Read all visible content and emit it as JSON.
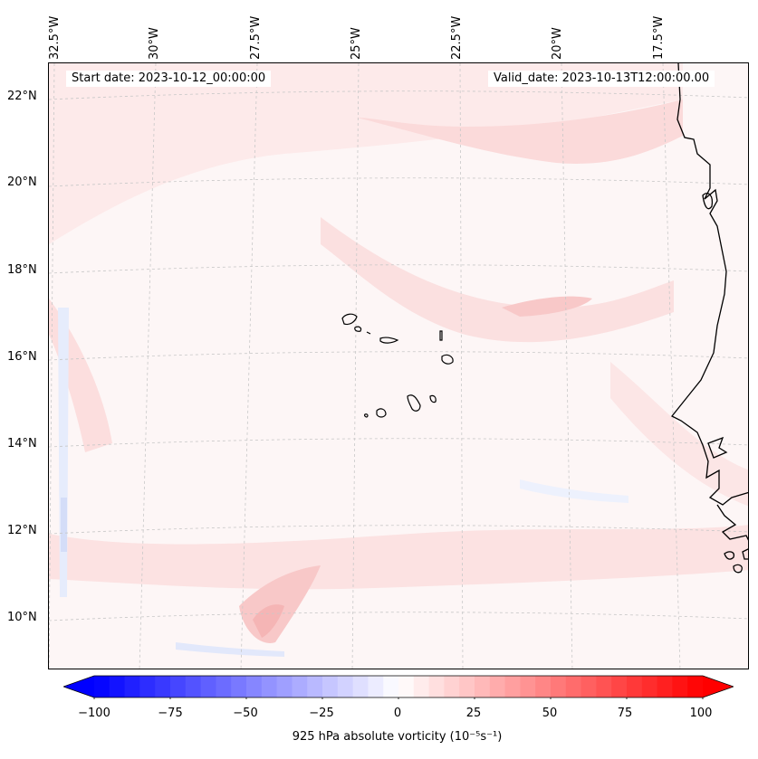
{
  "map": {
    "start_date_label": "Start date: 2023-10-12_00:00:00",
    "valid_date_label": "Valid_date: 2023-10-13T12:00:00.00",
    "lon_labels": [
      "32.5°W",
      "30°W",
      "27.5°W",
      "25°W",
      "22.5°W",
      "20°W",
      "17.5°W"
    ],
    "lat_labels": [
      "22°N",
      "20°N",
      "18°N",
      "16°N",
      "14°N",
      "12°N",
      "10°N"
    ],
    "field": "925 hPa absolute vorticity",
    "colors": {
      "coast": "#000000",
      "grid": "#bfbfbf",
      "neg_max": "#0000ff",
      "pos_max": "#ff0000",
      "neutral": "#ffffff"
    }
  },
  "colorbar": {
    "ticks": [
      "−100",
      "−75",
      "−50",
      "−25",
      "0",
      "25",
      "50",
      "75",
      "100"
    ],
    "tick_values": [
      -100,
      -75,
      -50,
      -25,
      0,
      25,
      50,
      75,
      100
    ],
    "range": [
      -100,
      100
    ],
    "label": "925 hPa absolute vorticity (10⁻⁵s⁻¹)"
  }
}
